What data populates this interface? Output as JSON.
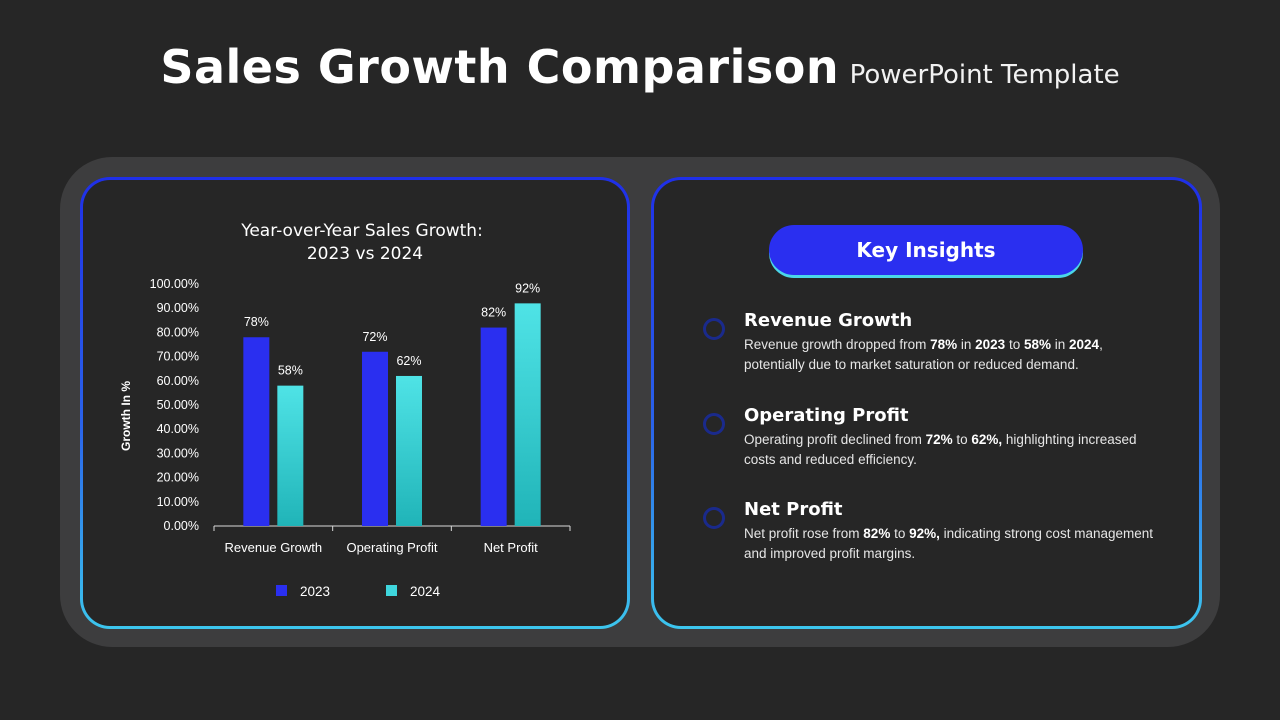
{
  "title": {
    "main": "Sales Growth Comparison",
    "sub": "PowerPoint Template"
  },
  "colors": {
    "series_2023": "#2a2ff0",
    "series_2024": "#3fd6dd",
    "background": "#262626",
    "card_border_top": "#1f2fe8",
    "card_border_bottom": "#3cc6ee"
  },
  "chart_data": {
    "type": "bar",
    "title": "Year-over-Year Sales Growth:",
    "subtitle": "2023 vs 2024",
    "xlabel": "",
    "ylabel": "Growth In %",
    "ylim": [
      0,
      100
    ],
    "yticks": [
      "100.00%",
      "90.00%",
      "80.00%",
      "70.00%",
      "60.00%",
      "50.00%",
      "40.00%",
      "30.00%",
      "20.00%",
      "10.00%",
      "0.00%"
    ],
    "categories": [
      "Revenue Growth",
      "Operating Profit",
      "Net Profit"
    ],
    "series": [
      {
        "name": "2023",
        "values": [
          78,
          72,
          82
        ],
        "labels": [
          "78%",
          "72%",
          "82%"
        ],
        "color": "#2a2ff0"
      },
      {
        "name": "2024",
        "values": [
          58,
          62,
          92
        ],
        "labels": [
          "58%",
          "62%",
          "92%"
        ],
        "color": "#3fd6dd"
      }
    ],
    "legend_position": "bottom",
    "grid": false
  },
  "insights": {
    "heading": "Key Insights",
    "items": [
      {
        "title": "Revenue Growth",
        "parts": [
          {
            "t": "Revenue growth dropped from ",
            "b": false
          },
          {
            "t": "78%",
            "b": true
          },
          {
            "t": " in ",
            "b": false
          },
          {
            "t": "2023",
            "b": true
          },
          {
            "t": " to ",
            "b": false
          },
          {
            "t": "58%",
            "b": true
          },
          {
            "t": " in ",
            "b": false
          },
          {
            "t": "2024",
            "b": true
          },
          {
            "t": ", potentially due to market saturation or reduced demand.",
            "b": false
          }
        ]
      },
      {
        "title": "Operating Profit",
        "parts": [
          {
            "t": "Operating profit declined from ",
            "b": false
          },
          {
            "t": "72%",
            "b": true
          },
          {
            "t": " to ",
            "b": false
          },
          {
            "t": "62%,",
            "b": true
          },
          {
            "t": " highlighting increased costs and reduced efficiency.",
            "b": false
          }
        ]
      },
      {
        "title": "Net Profit",
        "parts": [
          {
            "t": "Net profit rose from ",
            "b": false
          },
          {
            "t": "82%",
            "b": true
          },
          {
            "t": " to ",
            "b": false
          },
          {
            "t": "92%,",
            "b": true
          },
          {
            "t": " indicating strong cost management and improved profit margins.",
            "b": false
          }
        ]
      }
    ]
  }
}
